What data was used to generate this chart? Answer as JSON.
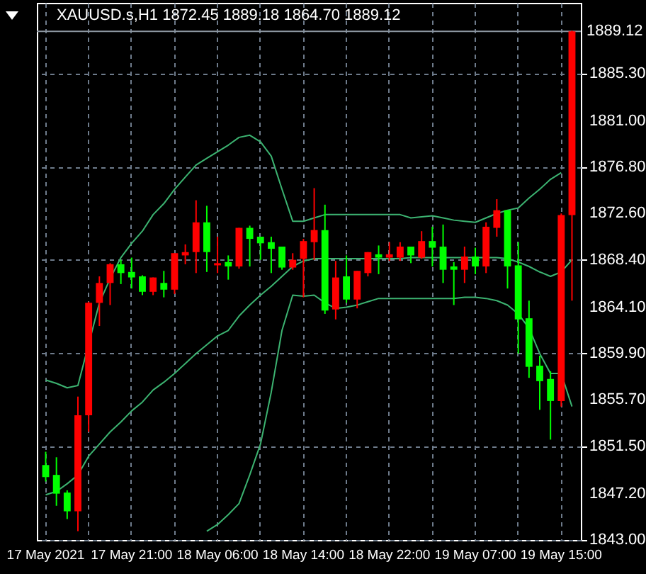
{
  "chart_data": {
    "type": "candlestick",
    "title": "XAUUSD.s,H1  1872.45 1889.18 1864.70 1889.12",
    "categories": [
      "17 May 2021",
      null,
      null,
      null,
      null,
      null,
      null,
      null,
      "17 May 21:00",
      null,
      null,
      null,
      null,
      null,
      null,
      null,
      "18 May 06:00",
      null,
      null,
      null,
      null,
      null,
      null,
      null,
      "18 May 14:00",
      null,
      null,
      null,
      null,
      null,
      null,
      null,
      "18 May 22:00",
      null,
      null,
      null,
      null,
      null,
      null,
      null,
      "19 May 07:00",
      null,
      null,
      null,
      null,
      null,
      null,
      null,
      "19 May 15:00",
      null
    ],
    "ohlc": [
      [
        1849.8,
        1851.0,
        1848.3,
        1848.7
      ],
      [
        1848.9,
        1850.5,
        1846.1,
        1847.2
      ],
      [
        1847.3,
        1847.5,
        1844.9,
        1845.6
      ],
      [
        1845.6,
        1856.0,
        1843.8,
        1854.3
      ],
      [
        1854.3,
        1864.6,
        1852.8,
        1864.5
      ],
      [
        1864.5,
        1866.9,
        1862.4,
        1866.3
      ],
      [
        1866.3,
        1868.1,
        1864.3,
        1868.0
      ],
      [
        1868.0,
        1868.4,
        1866.2,
        1867.2
      ],
      [
        1867.3,
        1868.6,
        1865.8,
        1866.8
      ],
      [
        1866.9,
        1867.0,
        1865.2,
        1865.5
      ],
      [
        1865.5,
        1866.8,
        1865.2,
        1866.8
      ],
      [
        1866.3,
        1867.4,
        1865.0,
        1865.7
      ],
      [
        1865.7,
        1869.0,
        1865.3,
        1869.0
      ],
      [
        1868.8,
        1869.8,
        1868.0,
        1869.1
      ],
      [
        1869.1,
        1873.8,
        1867.2,
        1871.8
      ],
      [
        1871.8,
        1873.3,
        1867.3,
        1869.1
      ],
      [
        1867.9,
        1870.5,
        1867.2,
        1868.1
      ],
      [
        1868.2,
        1868.8,
        1866.6,
        1867.8
      ],
      [
        1867.8,
        1871.3,
        1867.6,
        1871.3
      ],
      [
        1871.3,
        1871.5,
        1867.8,
        1870.3
      ],
      [
        1870.5,
        1870.5,
        1868.4,
        1869.9
      ],
      [
        1870.0,
        1870.5,
        1867.2,
        1869.4
      ],
      [
        1869.6,
        1869.6,
        1867.5,
        1867.7
      ],
      [
        1867.7,
        1869.0,
        1867.5,
        1868.4
      ],
      [
        1868.5,
        1870.3,
        1865.0,
        1870.1
      ],
      [
        1870.0,
        1874.9,
        1868.4,
        1871.1
      ],
      [
        1871.1,
        1873.4,
        1863.5,
        1863.8
      ],
      [
        1863.9,
        1868.3,
        1863.0,
        1866.8
      ],
      [
        1866.9,
        1868.8,
        1864.5,
        1864.8
      ],
      [
        1864.8,
        1867.4,
        1864.0,
        1867.4
      ],
      [
        1867.2,
        1869.1,
        1866.9,
        1869.1
      ],
      [
        1868.9,
        1869.7,
        1867.1,
        1868.6
      ],
      [
        1868.6,
        1870.0,
        1868.3,
        1868.9
      ],
      [
        1868.6,
        1870.0,
        1868.3,
        1869.6
      ],
      [
        1869.6,
        1869.6,
        1868.1,
        1868.8
      ],
      [
        1868.6,
        1871.0,
        1868.5,
        1870.1
      ],
      [
        1870.1,
        1871.4,
        1867.8,
        1869.5
      ],
      [
        1869.6,
        1871.6,
        1866.3,
        1867.5
      ],
      [
        1867.8,
        1868.2,
        1864.3,
        1867.5
      ],
      [
        1867.5,
        1869.6,
        1866.3,
        1868.7
      ],
      [
        1868.7,
        1869.5,
        1867.1,
        1867.8
      ],
      [
        1867.8,
        1871.8,
        1867.2,
        1871.4
      ],
      [
        1871.3,
        1873.9,
        1870.5,
        1872.9
      ],
      [
        1872.9,
        1872.9,
        1865.8,
        1867.8
      ],
      [
        1867.9,
        1870.0,
        1859.9,
        1863.0
      ],
      [
        1863.1,
        1864.7,
        1857.7,
        1858.7
      ],
      [
        1858.8,
        1859.7,
        1854.8,
        1857.4
      ],
      [
        1857.6,
        1858.3,
        1852.1,
        1855.6
      ],
      [
        1855.6,
        1872.6,
        1855.1,
        1872.45
      ],
      [
        1872.45,
        1889.18,
        1864.7,
        1889.12
      ]
    ],
    "colors": [
      "#00ff00",
      "#00ff00",
      "#00ff00",
      "#ff0000",
      "#ff0000",
      "#ff0000",
      "#ff0000",
      "#00ff00",
      "#00ff00",
      "#00ff00",
      "#ff0000",
      "#00ff00",
      "#ff0000",
      "#ff0000",
      "#ff0000",
      "#00ff00",
      "#ff0000",
      "#00ff00",
      "#ff0000",
      "#00ff00",
      "#00ff00",
      "#00ff00",
      "#00ff00",
      "#ff0000",
      "#ff0000",
      "#ff0000",
      "#00ff00",
      "#ff0000",
      "#00ff00",
      "#ff0000",
      "#ff0000",
      "#00ff00",
      "#ff0000",
      "#ff0000",
      "#00ff00",
      "#ff0000",
      "#00ff00",
      "#00ff00",
      "#00ff00",
      "#ff0000",
      "#00ff00",
      "#ff0000",
      "#ff0000",
      "#00ff00",
      "#00ff00",
      "#00ff00",
      "#00ff00",
      "#00ff00",
      "#ff0000",
      "#ff0000"
    ],
    "series": [
      {
        "type": "line",
        "color": "#3cb371",
        "values": [
          1857.5,
          1857.2,
          1856.8,
          1857.0,
          null,
          1864.5,
          1866.7,
          1868.6,
          1869.9,
          1871.0,
          1872.5,
          1873.5,
          1874.8,
          1875.9,
          1877.0,
          1877.6,
          1878.2,
          1878.8,
          1879.5,
          1879.7,
          1879.1,
          1877.8,
          1874.8,
          1871.9,
          1871.9,
          1872.2,
          1872.5,
          1872.5,
          1872.5,
          1872.5,
          1872.5,
          1872.5,
          1872.5,
          1872.5,
          1872.2,
          1872.3,
          1872.4,
          1872.2,
          1872.0,
          1871.9,
          1871.8,
          1872.2,
          1872.6,
          1872.9,
          1873.1,
          1874.0,
          1874.8,
          1875.7,
          1876.3,
          null
        ]
      },
      {
        "type": "line",
        "color": "#3cb371",
        "values": [
          1847.1,
          1847.4,
          1848.1,
          1848.9,
          1850.6,
          1851.7,
          1852.8,
          1853.7,
          1854.7,
          1855.5,
          1856.6,
          1857.3,
          1858.1,
          1859.0,
          1859.9,
          1860.7,
          1861.5,
          1862.0,
          1863.3,
          1864.3,
          1865.2,
          1866.0,
          1866.9,
          1867.8,
          1868.3,
          1868.5,
          1868.5,
          1868.5,
          1868.5,
          1868.5,
          1868.5,
          1868.5,
          1868.5,
          1868.5,
          1868.6,
          1868.6,
          1868.6,
          1868.6,
          1868.6,
          1868.6,
          1868.6,
          1868.6,
          1868.6,
          1868.5,
          1868.2,
          1867.8,
          1867.3,
          1866.9,
          1867.3,
          1868.4
        ]
      },
      {
        "type": "line",
        "color": "#3cb371",
        "values": [
          null,
          null,
          null,
          null,
          null,
          null,
          null,
          null,
          null,
          null,
          null,
          null,
          null,
          null,
          null,
          1843.8,
          1844.4,
          1845.3,
          1846.3,
          1848.9,
          1851.7,
          1856.4,
          1862.0,
          1865.2,
          1865.1,
          1865.2,
          1864.5,
          1864.0,
          1864.1,
          1864.3,
          1864.6,
          1864.9,
          1864.9,
          1864.9,
          1864.9,
          1864.9,
          1864.9,
          1864.9,
          1864.9,
          1865.0,
          1865.0,
          1864.9,
          1864.7,
          1864.3,
          1863.5,
          1862.2,
          1859.9,
          1858.1,
          1858.1,
          1855.1
        ]
      }
    ],
    "ylim": [
      1843.0,
      1891.7
    ],
    "yticks": [
      {
        "value": 1843.0,
        "label": "1843.00"
      },
      {
        "value": 1847.2,
        "label": "1847.20"
      },
      {
        "value": 1851.5,
        "label": "1851.50"
      },
      {
        "value": 1855.7,
        "label": "1855.70"
      },
      {
        "value": 1859.9,
        "label": "1859.90"
      },
      {
        "value": 1864.1,
        "label": "1864.10"
      },
      {
        "value": 1868.4,
        "label": "1868.40"
      },
      {
        "value": 1872.6,
        "label": "1872.60"
      },
      {
        "value": 1876.8,
        "label": "1876.80"
      },
      {
        "value": 1881.0,
        "label": "1881.00"
      },
      {
        "value": 1885.3,
        "label": "1885.30"
      }
    ],
    "ref_lines": [
      {
        "axis": "y",
        "value": 1889.12,
        "label": "1889.12",
        "color": "#8c96a0"
      }
    ],
    "grid": true
  }
}
